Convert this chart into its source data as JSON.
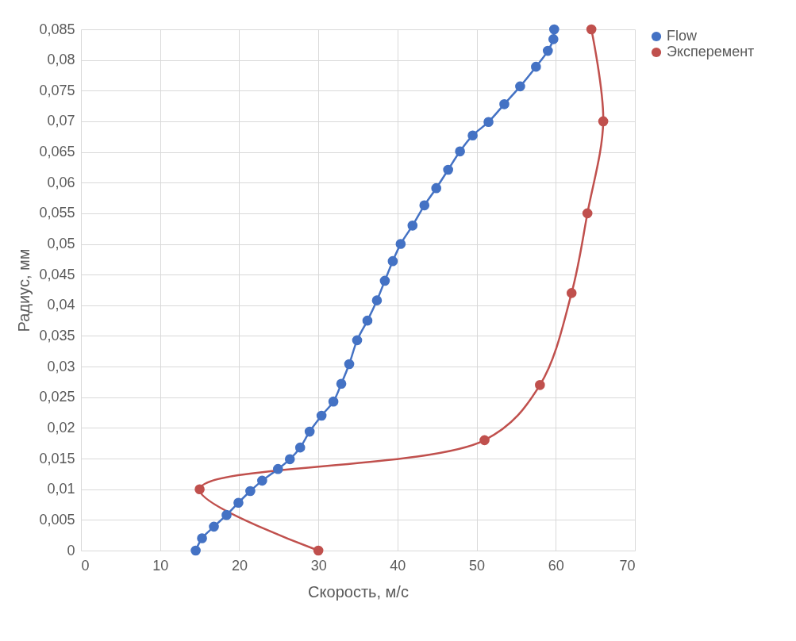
{
  "chart_data": {
    "type": "line",
    "xlabel": "Скорость, м/с",
    "ylabel": "Радиус, мм",
    "xlim": [
      0,
      70
    ],
    "xticks": [
      0,
      10,
      20,
      30,
      40,
      50,
      60,
      70
    ],
    "ylim": [
      0,
      0.085
    ],
    "yticks": [
      0,
      {
        "value": 0.005,
        "label": "0,005"
      },
      {
        "value": 0.01,
        "label": "0,01"
      },
      {
        "value": 0.015,
        "label": "0,015"
      },
      {
        "value": 0.02,
        "label": "0,02"
      },
      {
        "value": 0.025,
        "label": "0,025"
      },
      {
        "value": 0.03,
        "label": "0,03"
      },
      {
        "value": 0.035,
        "label": "0,035"
      },
      {
        "value": 0.04,
        "label": "0,04"
      },
      {
        "value": 0.045,
        "label": "0,045"
      },
      {
        "value": 0.05,
        "label": "0,05"
      },
      {
        "value": 0.055,
        "label": "0,055"
      },
      {
        "value": 0.06,
        "label": "0,06"
      },
      {
        "value": 0.065,
        "label": "0,065"
      },
      {
        "value": 0.07,
        "label": "0,07"
      },
      {
        "value": 0.075,
        "label": "0,075"
      },
      {
        "value": 0.08,
        "label": "0,08"
      },
      {
        "value": 0.085,
        "label": "0,085"
      }
    ],
    "grid": true,
    "legend": "right",
    "marker": "circle",
    "series": [
      {
        "name": "Flow",
        "color": "#4472c4",
        "x": [
          14.5,
          15.3,
          16.8,
          18.4,
          19.9,
          21.4,
          22.9,
          24.9,
          26.4,
          27.7,
          28.9,
          30.4,
          31.9,
          32.9,
          33.9,
          34.9,
          36.2,
          37.4,
          38.4,
          39.4,
          40.4,
          41.9,
          43.4,
          44.9,
          46.4,
          47.9,
          49.5,
          51.5,
          53.5,
          55.5,
          57.5,
          59.0,
          59.7,
          59.8
        ],
        "values": [
          0,
          0.002,
          0.0039,
          0.0058,
          0.0078,
          0.0097,
          0.0114,
          0.0133,
          0.0149,
          0.0168,
          0.0194,
          0.022,
          0.0243,
          0.0272,
          0.0304,
          0.0343,
          0.0375,
          0.0408,
          0.044,
          0.0472,
          0.05,
          0.053,
          0.0563,
          0.0591,
          0.0621,
          0.0651,
          0.0677,
          0.0699,
          0.0728,
          0.0757,
          0.0789,
          0.0815,
          0.0834,
          0.085
        ]
      },
      {
        "name": "Эксперемент",
        "color": "#c0504d",
        "x": [
          30,
          15,
          51,
          58,
          62,
          64,
          66,
          64.5
        ],
        "values": [
          0,
          0.01,
          0.018,
          0.027,
          0.042,
          0.055,
          0.07,
          0.085
        ]
      }
    ]
  }
}
